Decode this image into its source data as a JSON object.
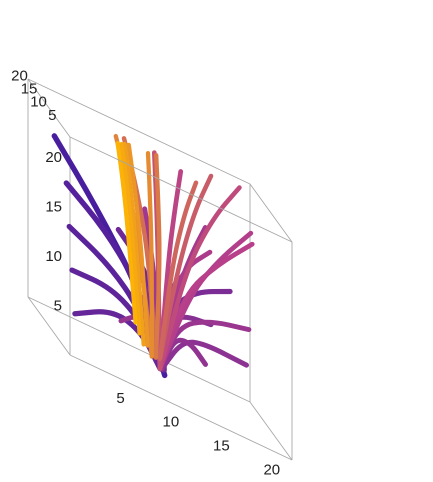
{
  "chart_data": {
    "type": "3d-parametric-tubes",
    "title": "",
    "xlabel": "",
    "ylabel": "",
    "zlabel": "",
    "xlim": [
      0,
      22
    ],
    "ylim": [
      0,
      22
    ],
    "zlim": [
      0,
      22
    ],
    "x_ticks": [
      5,
      10,
      15,
      20
    ],
    "y_ticks": [
      5,
      10,
      15,
      20
    ],
    "z_ticks": [
      5,
      10,
      15,
      20
    ],
    "x_tick_labels": [
      "5",
      "10",
      "15",
      "20"
    ],
    "y_tick_labels": [
      "5",
      "10",
      "15",
      "20"
    ],
    "z_tick_labels": [
      "5",
      "10",
      "15",
      "20"
    ],
    "box": true,
    "grid": false,
    "legend": "none",
    "color_map": {
      "low": "#3d1aa0",
      "mid": "#b83f8a",
      "high": "#ffb800"
    },
    "description_of_marks": "Bundle of thick tube-like curves rising from a common center near (11,11); curves with low start height arch outward (purple), those starting higher rise nearly vertically (orange).",
    "series": [
      {
        "t": 0.05,
        "points": [
          [
            11.5,
            11.2,
            0.5
          ],
          [
            9,
            12,
            8
          ],
          [
            5,
            13,
            14
          ],
          [
            1,
            13.5,
            19
          ]
        ]
      },
      {
        "t": 0.1,
        "points": [
          [
            11.4,
            11.0,
            1
          ],
          [
            9,
            11.5,
            8
          ],
          [
            6,
            12,
            12
          ],
          [
            2,
            12.5,
            15
          ]
        ]
      },
      {
        "t": 0.12,
        "points": [
          [
            11.3,
            11.0,
            1
          ],
          [
            9,
            11,
            6
          ],
          [
            6,
            11,
            9
          ],
          [
            2,
            11,
            11
          ]
        ]
      },
      {
        "t": 0.14,
        "points": [
          [
            11.2,
            11.0,
            1
          ],
          [
            9,
            10.5,
            5
          ],
          [
            6,
            10,
            7
          ],
          [
            2,
            9.5,
            7
          ]
        ]
      },
      {
        "t": 0.16,
        "points": [
          [
            11.0,
            11.0,
            1
          ],
          [
            9,
            10,
            4
          ],
          [
            6,
            9,
            5
          ],
          [
            2,
            8,
            3
          ]
        ]
      },
      {
        "t": 0.2,
        "points": [
          [
            11.5,
            11.5,
            1
          ],
          [
            11,
            13,
            7
          ],
          [
            10,
            15,
            10
          ],
          [
            8,
            17,
            12
          ]
        ]
      },
      {
        "t": 0.22,
        "points": [
          [
            11.5,
            11.5,
            1
          ],
          [
            12,
            13,
            7
          ],
          [
            13,
            15,
            9
          ],
          [
            14,
            17,
            10
          ]
        ]
      },
      {
        "t": 0.25,
        "points": [
          [
            11.3,
            11.3,
            1
          ],
          [
            12,
            10,
            8
          ],
          [
            14,
            8,
            11
          ],
          [
            17,
            6,
            13
          ]
        ]
      },
      {
        "t": 0.28,
        "points": [
          [
            11.3,
            11.3,
            1
          ],
          [
            10,
            10,
            6
          ],
          [
            9,
            8,
            9
          ],
          [
            8,
            6,
            11
          ]
        ]
      },
      {
        "t": 0.3,
        "points": [
          [
            11.2,
            11.2,
            1
          ],
          [
            12,
            12,
            6
          ],
          [
            14,
            14,
            7
          ],
          [
            17,
            16,
            7
          ]
        ]
      },
      {
        "t": 0.32,
        "points": [
          [
            11.2,
            11.2,
            1
          ],
          [
            13,
            10,
            5
          ],
          [
            15,
            9,
            6
          ],
          [
            19,
            8,
            6
          ]
        ]
      },
      {
        "t": 0.34,
        "points": [
          [
            11.2,
            11.2,
            1
          ],
          [
            12,
            9,
            5
          ],
          [
            13,
            6,
            6
          ],
          [
            14,
            3,
            5
          ]
        ]
      },
      {
        "t": 0.36,
        "points": [
          [
            11.2,
            11.2,
            1
          ],
          [
            10,
            9,
            5
          ],
          [
            8,
            7,
            6
          ],
          [
            6,
            5,
            5
          ]
        ]
      },
      {
        "t": 0.38,
        "points": [
          [
            11.0,
            11.0,
            1
          ],
          [
            13,
            12,
            6
          ],
          [
            16,
            12,
            8
          ],
          [
            20,
            12,
            9
          ]
        ]
      },
      {
        "t": 0.4,
        "points": [
          [
            11.0,
            11.0,
            1
          ],
          [
            11,
            13,
            8
          ],
          [
            11,
            16,
            12
          ],
          [
            11,
            19,
            15
          ]
        ]
      },
      {
        "t": 0.42,
        "points": [
          [
            11.0,
            11.0,
            1
          ],
          [
            13,
            13,
            9
          ],
          [
            15,
            16,
            13
          ],
          [
            17,
            19,
            16
          ]
        ]
      },
      {
        "t": 0.45,
        "points": [
          [
            11.0,
            11.0,
            1
          ],
          [
            12,
            10,
            9
          ],
          [
            13,
            8,
            13
          ],
          [
            15,
            6,
            16
          ]
        ]
      },
      {
        "t": 0.48,
        "points": [
          [
            11.0,
            11.0,
            1
          ],
          [
            14,
            11,
            10
          ],
          [
            17,
            11,
            15
          ],
          [
            20,
            11,
            19
          ]
        ]
      },
      {
        "t": 0.5,
        "points": [
          [
            11.0,
            11.0,
            1
          ],
          [
            13,
            9,
            10
          ],
          [
            16,
            7,
            15
          ],
          [
            19,
            5,
            19
          ]
        ]
      },
      {
        "t": 0.52,
        "points": [
          [
            11.0,
            11.0,
            1
          ],
          [
            12,
            12,
            12
          ],
          [
            13,
            14,
            17
          ],
          [
            14,
            16,
            21
          ]
        ]
      },
      {
        "t": 0.55,
        "points": [
          [
            11.0,
            11.0,
            1
          ],
          [
            14,
            13,
            12
          ],
          [
            17,
            15,
            18
          ],
          [
            20,
            17,
            22
          ]
        ]
      },
      {
        "t": 0.58,
        "points": [
          [
            11.0,
            11.0,
            1
          ],
          [
            11,
            12,
            12
          ],
          [
            11,
            13,
            18
          ],
          [
            11,
            14,
            22
          ]
        ]
      },
      {
        "t": 0.62,
        "points": [
          [
            11.0,
            11.0,
            2
          ],
          [
            13,
            12,
            12
          ],
          [
            15,
            14,
            18
          ],
          [
            17,
            16,
            22
          ]
        ]
      },
      {
        "t": 0.66,
        "points": [
          [
            11.0,
            11.0,
            2
          ],
          [
            12,
            10,
            12
          ],
          [
            13,
            9,
            18
          ],
          [
            14,
            8,
            22
          ]
        ]
      },
      {
        "t": 0.7,
        "points": [
          [
            10.5,
            10.5,
            2
          ],
          [
            10,
            12,
            12
          ],
          [
            9,
            13,
            18
          ],
          [
            8,
            14,
            22
          ]
        ]
      },
      {
        "t": 0.74,
        "points": [
          [
            10.5,
            10.5,
            2
          ],
          [
            11,
            11,
            12
          ],
          [
            11,
            12,
            18
          ],
          [
            11,
            13,
            22
          ]
        ]
      },
      {
        "t": 0.78,
        "points": [
          [
            10.0,
            10.0,
            2
          ],
          [
            9,
            11,
            12
          ],
          [
            8,
            12,
            18
          ],
          [
            7,
            13,
            22
          ]
        ]
      },
      {
        "t": 0.82,
        "points": [
          [
            10.0,
            10.0,
            2
          ],
          [
            10,
            10,
            12
          ],
          [
            10,
            11,
            18
          ],
          [
            10,
            12,
            22
          ]
        ]
      },
      {
        "t": 0.86,
        "points": [
          [
            9.5,
            9.5,
            3
          ],
          [
            9,
            10,
            12
          ],
          [
            8.5,
            11,
            18
          ],
          [
            8,
            11.5,
            22
          ]
        ]
      },
      {
        "t": 0.9,
        "points": [
          [
            9.0,
            9.0,
            3
          ],
          [
            8.5,
            10,
            12
          ],
          [
            8,
            10.5,
            18
          ],
          [
            7.5,
            11,
            22
          ]
        ]
      },
      {
        "t": 0.94,
        "points": [
          [
            8.5,
            8.5,
            4
          ],
          [
            8,
            9,
            12
          ],
          [
            7.5,
            9.5,
            18
          ],
          [
            7,
            10,
            22
          ]
        ]
      },
      {
        "t": 0.98,
        "points": [
          [
            8.0,
            8.0,
            5
          ],
          [
            7.5,
            8.5,
            12
          ],
          [
            7,
            9,
            18
          ],
          [
            6.5,
            9.5,
            22
          ]
        ]
      }
    ]
  }
}
